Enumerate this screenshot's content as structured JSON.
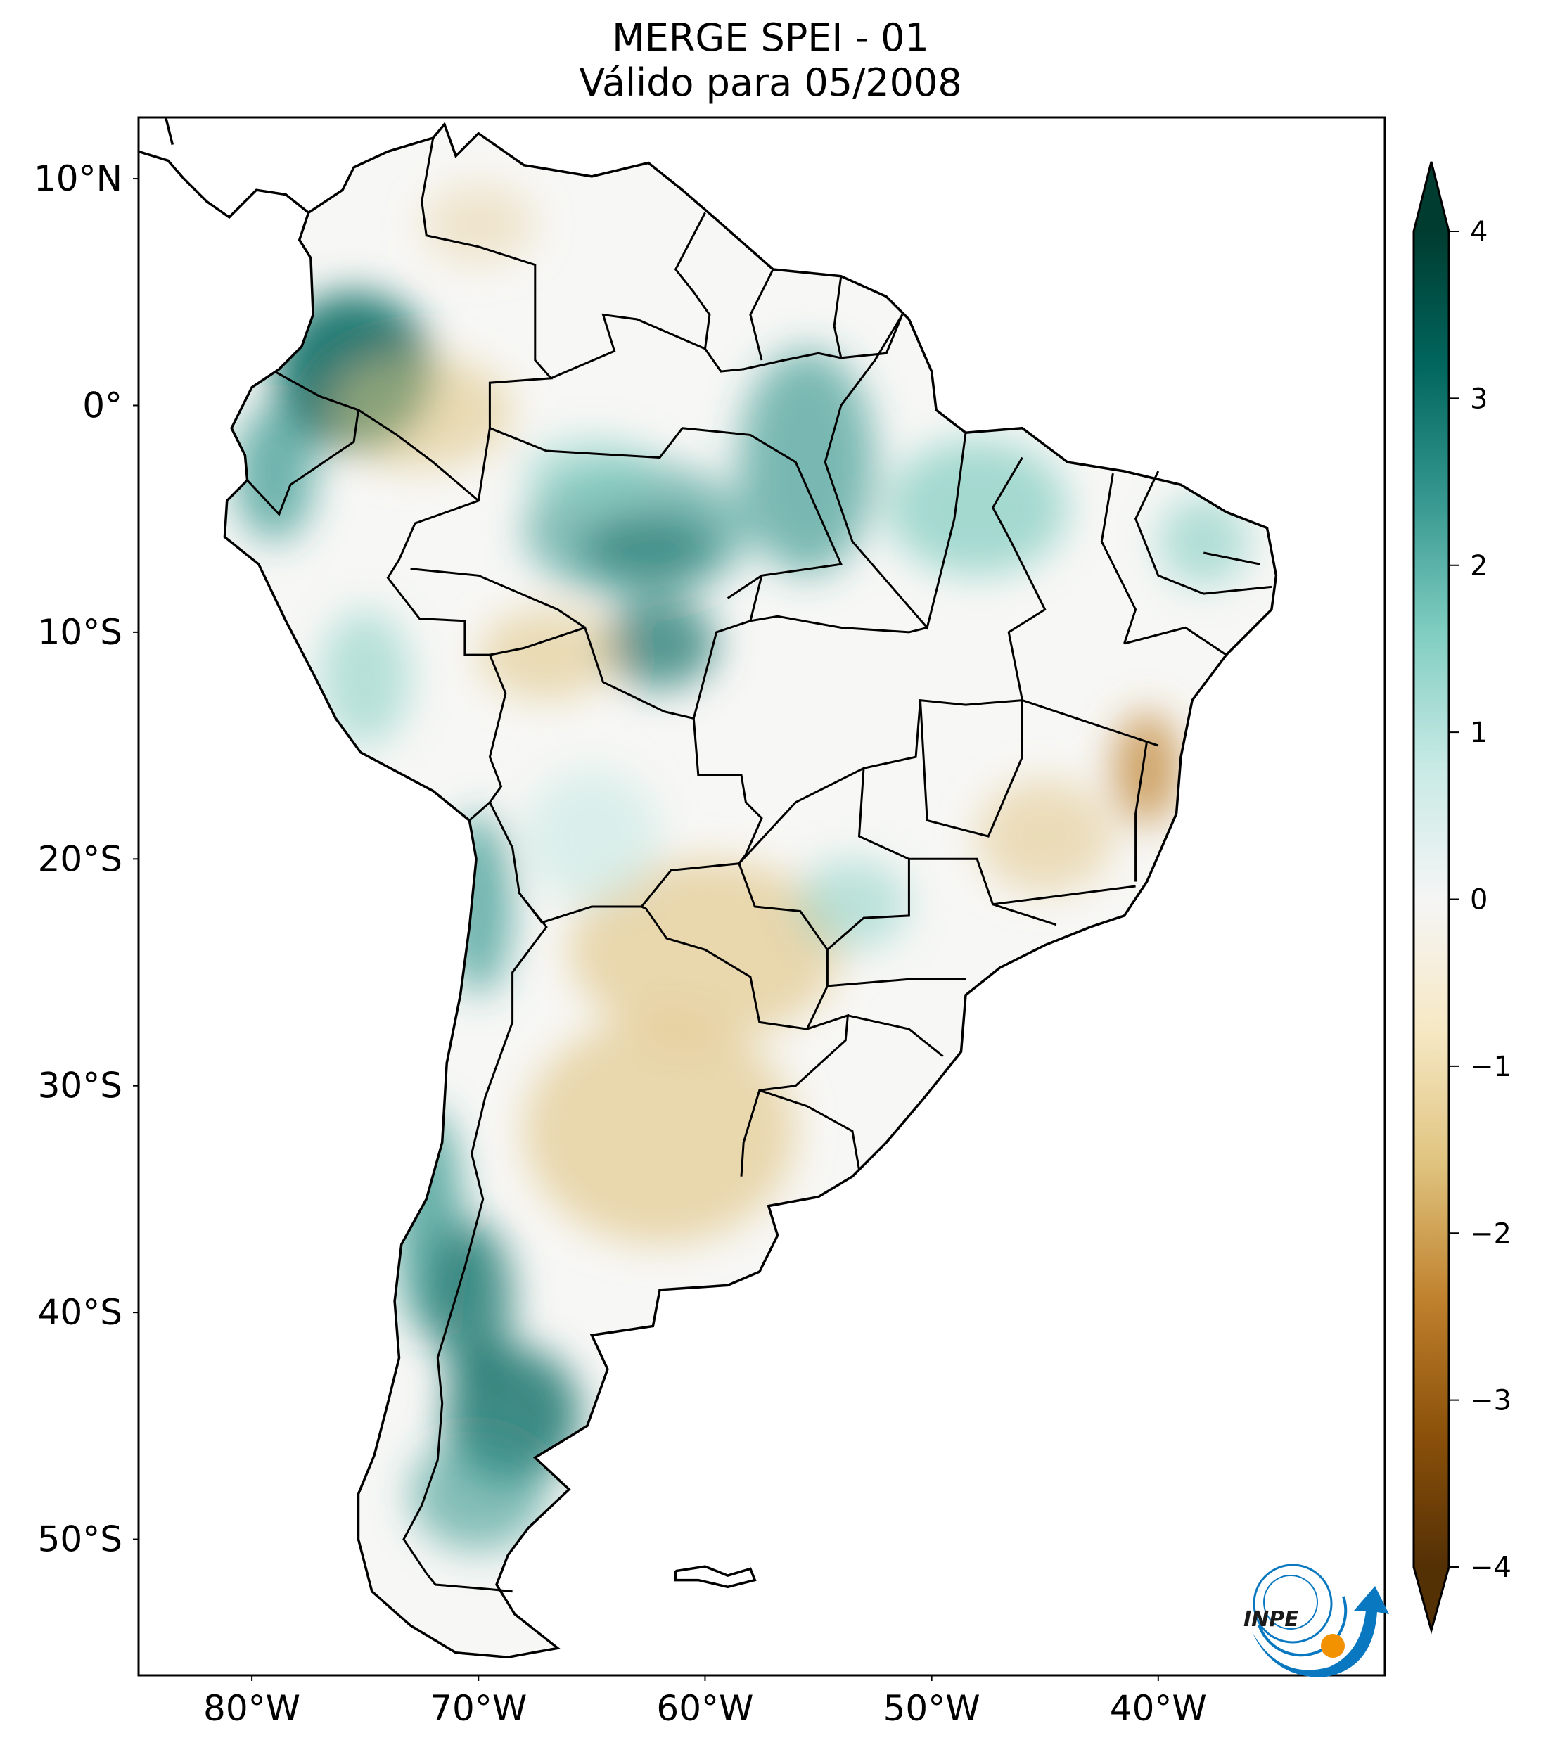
{
  "title": {
    "line1": "MERGE   SPEI - 01",
    "line2": "Válido para 05/2008"
  },
  "map": {
    "extent_lon": [
      -85,
      -30
    ],
    "extent_lat": [
      -56,
      12.7
    ],
    "lat_ticks": [
      {
        "value": 10,
        "label": "10°N"
      },
      {
        "value": 0,
        "label": "0°"
      },
      {
        "value": -10,
        "label": "10°S"
      },
      {
        "value": -20,
        "label": "20°S"
      },
      {
        "value": -30,
        "label": "30°S"
      },
      {
        "value": -40,
        "label": "40°S"
      },
      {
        "value": -50,
        "label": "50°S"
      }
    ],
    "lon_ticks": [
      {
        "value": -80,
        "label": "80°W"
      },
      {
        "value": -70,
        "label": "70°W"
      },
      {
        "value": -60,
        "label": "60°W"
      },
      {
        "value": -50,
        "label": "50°W"
      },
      {
        "value": -40,
        "label": "40°W"
      }
    ]
  },
  "colorbar": {
    "range": [
      -4,
      4
    ],
    "extend": "both",
    "ticks": [
      "4",
      "3",
      "2",
      "1",
      "0",
      "-1",
      "-2",
      "-3",
      "-4"
    ],
    "colors": [
      "#543005",
      "#8c510a",
      "#bf812d",
      "#dfc27d",
      "#f6e8c3",
      "#f5f5f5",
      "#c7eae5",
      "#80cdc1",
      "#35978f",
      "#01665e",
      "#003c30"
    ]
  },
  "logo": {
    "text": "INPE",
    "colors": {
      "blue": "#0a78c0",
      "orange": "#f39200"
    }
  }
}
